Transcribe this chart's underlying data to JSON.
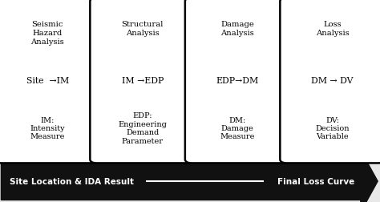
{
  "bg_color": "#e8e8e8",
  "box_bg": "#ffffff",
  "box_edge": "#000000",
  "arrow_color": "#111111",
  "text_color": "#000000",
  "boxes": [
    {
      "title": "Seismic\nHazard\nAnalysis",
      "line2": "Site  →IM",
      "line3": "IM:\nIntensity\nMeasure"
    },
    {
      "title": "Structural\nAnalysis",
      "line2": "IM →EDP",
      "line3": "EDP:\nEngineering\nDemand\nParameter"
    },
    {
      "title": "Damage\nAnalysis",
      "line2": "EDP→DM",
      "line3": "DM:\nDamage\nMeasure"
    },
    {
      "title": "Loss\nAnalysis",
      "line2": "DM → DV",
      "line3": "DV:\nDecision\nVariable"
    }
  ],
  "arrow_label_left": "Site Location & IDA Result",
  "arrow_label_right": "Final Loss Curve",
  "figsize": [
    4.74,
    2.53
  ],
  "dpi": 100
}
